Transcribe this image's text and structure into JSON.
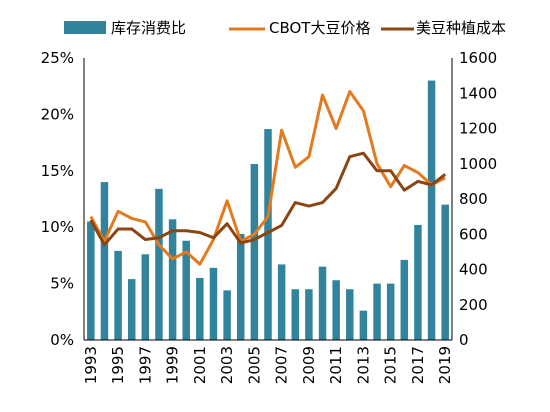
{
  "chart_data": {
    "type": "bar",
    "categories": [
      "1993",
      "1994",
      "1995",
      "1996",
      "1997",
      "1998",
      "1999",
      "2000",
      "2001",
      "2002",
      "2003",
      "2004",
      "2005",
      "2006",
      "2007",
      "2008",
      "2009",
      "2010",
      "2011",
      "2012",
      "2013",
      "2014",
      "2015",
      "2016",
      "2017",
      "2018",
      "2019"
    ],
    "x_tick_labels": [
      "1993",
      "1995",
      "1997",
      "1999",
      "2001",
      "2003",
      "2005",
      "2007",
      "2009",
      "2011",
      "2013",
      "2015",
      "2017",
      "2019"
    ],
    "y_left": {
      "ylim": [
        0,
        25
      ],
      "ticks": [
        "0%",
        "5%",
        "10%",
        "15%",
        "20%",
        "25%"
      ]
    },
    "y_right": {
      "ylim": [
        0,
        1600
      ],
      "ticks": [
        "0",
        "200",
        "400",
        "600",
        "800",
        "1000",
        "1200",
        "1400",
        "1600"
      ]
    },
    "bar_series": {
      "name": "库存消费比",
      "axis": "left",
      "color": "#31849b",
      "values": [
        10.5,
        14.0,
        7.9,
        5.4,
        7.6,
        13.4,
        10.7,
        8.8,
        5.5,
        6.4,
        4.4,
        9.4,
        15.6,
        18.7,
        6.7,
        4.5,
        4.5,
        6.5,
        5.3,
        4.5,
        2.6,
        5.0,
        5.0,
        7.1,
        10.2,
        23.0,
        12.0
      ]
    },
    "line_series": [
      {
        "name": "CBOT大豆价格",
        "axis": "right",
        "color": "#e37a1f",
        "values": [
          700,
          560,
          730,
          690,
          670,
          540,
          460,
          500,
          430,
          570,
          790,
          560,
          600,
          700,
          1190,
          980,
          1040,
          1390,
          1200,
          1410,
          1300,
          1000,
          870,
          990,
          950,
          880,
          920
        ]
      },
      {
        "name": "美豆种植成本",
        "axis": "right",
        "color": "#8b4513",
        "values": [
          680,
          540,
          630,
          630,
          570,
          580,
          620,
          620,
          610,
          580,
          660,
          550,
          570,
          610,
          650,
          780,
          760,
          780,
          860,
          1040,
          1060,
          960,
          960,
          850,
          900,
          880,
          940
        ]
      }
    ],
    "legend": [
      "库存消费比",
      "CBOT大豆价格",
      "美豆种植成本"
    ],
    "legend_position": "top",
    "grid": false
  }
}
